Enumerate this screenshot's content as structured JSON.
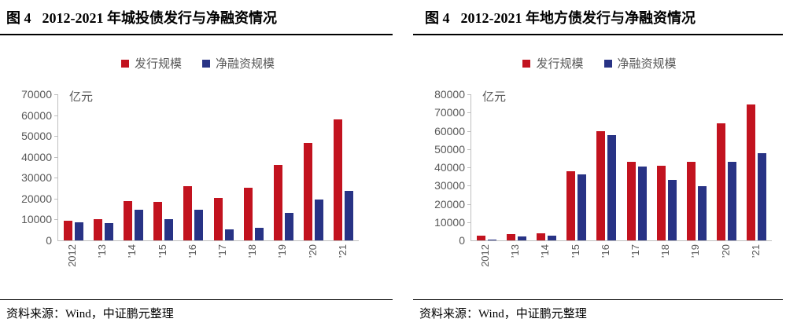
{
  "panels": [
    {
      "figure_label": "图 4",
      "title": "2012-2021 年城投债发行与净融资情况",
      "legend": [
        {
          "label": "发行规模",
          "color": "#c2131f"
        },
        {
          "label": "净融资规模",
          "color": "#283385"
        }
      ],
      "source": "资料来源：Wind，中证鹏元整理"
    },
    {
      "figure_label": "图 4",
      "title": "2012-2021 年地方债发行与净融资情况",
      "legend": [
        {
          "label": "发行规模",
          "color": "#c2131f"
        },
        {
          "label": "净融资规模",
          "color": "#283385"
        }
      ],
      "source": "资料来源：Wind，中证鹏元整理"
    }
  ],
  "chart_data": [
    {
      "type": "bar",
      "title": "2012-2021 年城投债发行与净融资情况",
      "categories": [
        "2012",
        "’13",
        "’14",
        "’15",
        "’16",
        "’17",
        "’18",
        "’19",
        "’20",
        "’21"
      ],
      "series": [
        {
          "name": "发行规模",
          "color": "#c2131f",
          "values": [
            9500,
            10100,
            19000,
            18300,
            25800,
            20400,
            25300,
            36000,
            46800,
            57800
          ]
        },
        {
          "name": "净融资规模",
          "color": "#283385",
          "values": [
            8600,
            8200,
            14800,
            10100,
            14600,
            5400,
            6200,
            13100,
            19500,
            23700
          ]
        }
      ],
      "xlabel": "",
      "ylabel": "亿元",
      "ylim": [
        0,
        70000
      ],
      "ystep": 10000,
      "grid": false,
      "legend_position": "top"
    },
    {
      "type": "bar",
      "title": "2012-2021 年地方债发行与净融资情况",
      "categories": [
        "2012",
        "’13",
        "’14",
        "’15",
        "’16",
        "’17",
        "’18",
        "’19",
        "’20",
        "’21"
      ],
      "series": [
        {
          "name": "发行规模",
          "color": "#c2131f",
          "values": [
            2500,
            3300,
            4000,
            38000,
            60000,
            43000,
            41000,
            43000,
            64000,
            74500
          ]
        },
        {
          "name": "净融资规模",
          "color": "#283385",
          "values": [
            600,
            2000,
            2600,
            36000,
            57500,
            40300,
            33000,
            29800,
            43000,
            47600
          ]
        }
      ],
      "xlabel": "",
      "ylabel": "亿元",
      "ylim": [
        0,
        80000
      ],
      "ystep": 10000,
      "grid": false,
      "legend_position": "top"
    }
  ]
}
